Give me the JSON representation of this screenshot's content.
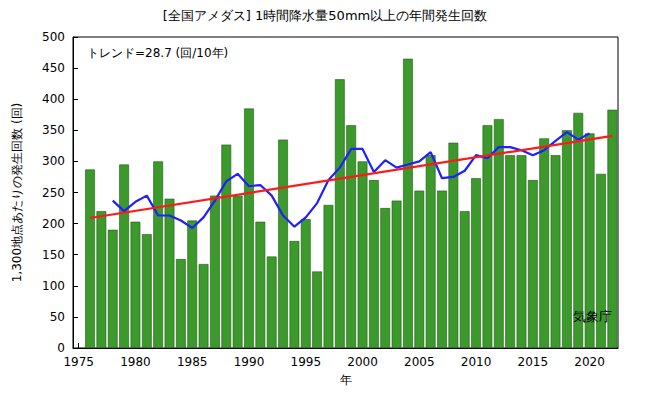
{
  "chart_data": {
    "type": "bar",
    "title": "[全国アメダス] 1時間降水量50mm以上の年間発生回数",
    "xlabel": "年",
    "ylabel": "1,300地点あたりの発生回数 (回)",
    "annotations": [
      {
        "text": "トレンド=28.7 (回/10年)"
      },
      {
        "text": "気象庁"
      }
    ],
    "x": [
      1976,
      1977,
      1978,
      1979,
      1980,
      1981,
      1982,
      1983,
      1984,
      1985,
      1986,
      1987,
      1988,
      1989,
      1990,
      1991,
      1992,
      1993,
      1994,
      1995,
      1996,
      1997,
      1998,
      1999,
      2000,
      2001,
      2002,
      2003,
      2004,
      2005,
      2006,
      2007,
      2008,
      2009,
      2010,
      2011,
      2012,
      2013,
      2014,
      2015,
      2016,
      2017,
      2018,
      2019,
      2020,
      2021,
      2022
    ],
    "series": [
      {
        "type": "bar",
        "color": "#3c9a2c",
        "values": [
          287,
          220,
          190,
          295,
          203,
          183,
          300,
          240,
          143,
          205,
          135,
          245,
          327,
          245,
          385,
          203,
          147,
          335,
          172,
          207,
          123,
          230,
          432,
          358,
          300,
          270,
          225,
          237,
          465,
          253,
          310,
          253,
          330,
          220,
          273,
          358,
          368,
          310,
          310,
          270,
          337,
          310,
          350,
          378,
          345,
          280,
          383
        ]
      },
      {
        "type": "line",
        "color": "#1f1fff",
        "values": [
          null,
          null,
          237,
          220,
          235,
          245,
          213,
          213,
          205,
          193,
          210,
          237,
          268,
          280,
          260,
          262,
          245,
          213,
          195,
          210,
          233,
          270,
          290,
          320,
          320,
          283,
          302,
          290,
          295,
          300,
          315,
          273,
          275,
          285,
          310,
          305,
          323,
          323,
          318,
          310,
          318,
          333,
          347,
          335,
          345,
          null,
          null
        ]
      },
      {
        "type": "line",
        "color": "#ff1a1a",
        "values": [
          209,
          null,
          null,
          null,
          null,
          null,
          null,
          null,
          null,
          null,
          null,
          null,
          null,
          null,
          null,
          null,
          null,
          null,
          null,
          null,
          null,
          null,
          null,
          null,
          null,
          null,
          null,
          null,
          null,
          null,
          null,
          null,
          null,
          null,
          null,
          null,
          null,
          null,
          null,
          null,
          null,
          null,
          null,
          null,
          null,
          null,
          341
        ]
      }
    ],
    "xlim": [
      1974.5,
      2022.5
    ],
    "xticks": [
      1975,
      1980,
      1985,
      1990,
      1995,
      2000,
      2005,
      2010,
      2015,
      2020
    ],
    "ylim": [
      0,
      500
    ],
    "yticks": [
      0,
      50,
      100,
      150,
      200,
      250,
      300,
      350,
      400,
      450,
      500
    ],
    "grid": false
  }
}
